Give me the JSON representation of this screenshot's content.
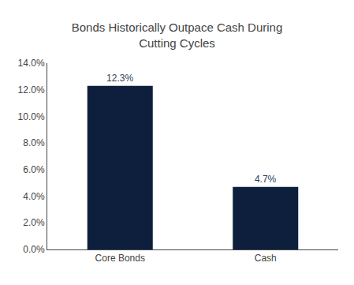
{
  "chart_data": {
    "type": "bar",
    "title": "Bonds Historically Outpace Cash During\nCutting Cycles",
    "categories": [
      "Core Bonds",
      "Cash"
    ],
    "values": [
      0.123,
      0.047
    ],
    "value_labels": [
      "12.3%",
      "4.7%"
    ],
    "data_labels": true,
    "color": "#0d1f3c",
    "ylim": [
      0,
      0.14
    ],
    "yticks": [
      {
        "value": 0.0,
        "label": "0.0%"
      },
      {
        "value": 0.02,
        "label": "2.0%"
      },
      {
        "value": 0.04,
        "label": "4.0%"
      },
      {
        "value": 0.06,
        "label": "6.0%"
      },
      {
        "value": 0.08,
        "label": "8.0%"
      },
      {
        "value": 0.1,
        "label": "10.0%"
      },
      {
        "value": 0.12,
        "label": "12.0%"
      },
      {
        "value": 0.14,
        "label": "14.0%"
      }
    ],
    "grid": false
  }
}
